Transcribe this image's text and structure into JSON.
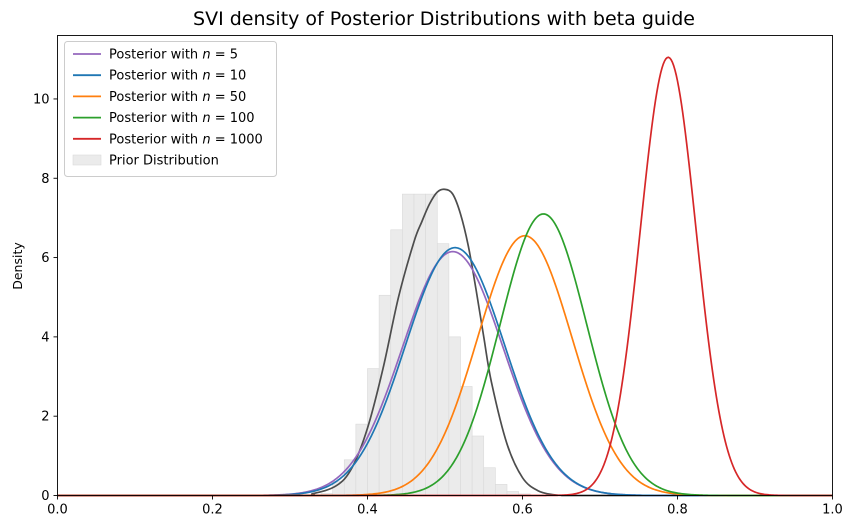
{
  "chart_data": {
    "type": "line",
    "title": "SVI density of Posterior Distributions with beta guide",
    "xlabel": "",
    "ylabel": "Density",
    "xlim": [
      0.0,
      1.0
    ],
    "ylim": [
      0,
      11.6
    ],
    "xticks": [
      "0.0",
      "0.2",
      "0.4",
      "0.6",
      "0.8",
      "1.0"
    ],
    "yticks": [
      "0",
      "2",
      "4",
      "6",
      "8",
      "10"
    ],
    "legend_position": "upper-left",
    "grid": false,
    "series": [
      {
        "name": "Posterior with $n = 5$",
        "label_prefix": "Posterior with ",
        "label_n": "n",
        "label_eq": " = 5",
        "color": "#9467bd",
        "mean": 0.51,
        "sd": 0.065,
        "peak": 6.15
      },
      {
        "name": "Posterior with $n = 10$",
        "label_prefix": "Posterior with ",
        "label_n": "n",
        "label_eq": " = 10",
        "color": "#1f77b4",
        "mean": 0.513,
        "sd": 0.064,
        "peak": 6.25
      },
      {
        "name": "Posterior with $n = 50$",
        "label_prefix": "Posterior with ",
        "label_n": "n",
        "label_eq": " = 50",
        "color": "#ff7f0e",
        "mean": 0.603,
        "sd": 0.061,
        "peak": 6.55
      },
      {
        "name": "Posterior with $n = 100$",
        "label_prefix": "Posterior with ",
        "label_n": "n",
        "label_eq": " = 100",
        "color": "#2ca02c",
        "mean": 0.627,
        "sd": 0.056,
        "peak": 7.1
      },
      {
        "name": "Posterior with $n = 1000$",
        "label_prefix": "Posterior with ",
        "label_n": "n",
        "label_eq": " = 1000",
        "color": "#d62728",
        "mean": 0.788,
        "sd": 0.036,
        "peak": 11.05
      }
    ],
    "prior_kde": {
      "color": "#4d4d4d",
      "x": [
        0.3,
        0.33,
        0.36,
        0.38,
        0.4,
        0.42,
        0.44,
        0.46,
        0.47,
        0.48,
        0.49,
        0.5,
        0.51,
        0.52,
        0.53,
        0.54,
        0.55,
        0.56,
        0.58,
        0.6,
        0.62,
        0.64,
        0.66,
        0.68
      ],
      "y": [
        0.0,
        0.05,
        0.25,
        0.7,
        1.7,
        3.2,
        5.0,
        6.4,
        6.9,
        7.35,
        7.65,
        7.72,
        7.6,
        7.1,
        6.3,
        5.2,
        4.0,
        2.85,
        1.3,
        0.45,
        0.12,
        0.02,
        0.0,
        0.0
      ]
    },
    "prior_hist": {
      "name": "Prior Distribution",
      "color": "#ebebeb",
      "bin_edges": [
        0.34,
        0.355,
        0.37,
        0.385,
        0.4,
        0.415,
        0.43,
        0.445,
        0.46,
        0.475,
        0.49,
        0.505,
        0.52,
        0.535,
        0.55,
        0.565,
        0.58,
        0.595,
        0.61,
        0.625
      ],
      "values": [
        0.05,
        0.35,
        0.9,
        1.8,
        3.2,
        5.05,
        6.7,
        7.6,
        7.6,
        7.6,
        6.35,
        4.0,
        2.75,
        1.5,
        0.7,
        0.28,
        0.1,
        0.04,
        0.01
      ]
    }
  }
}
